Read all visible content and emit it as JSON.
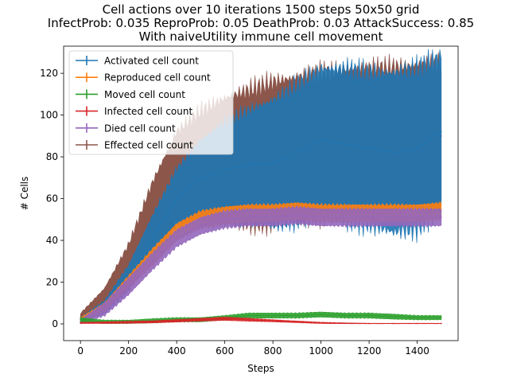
{
  "chart_data": {
    "type": "line",
    "title": [
      "Cell actions over 10 iterations 1500 steps 50x50 grid",
      "InfectProb: 0.035 ReproProb: 0.05 DeathProb: 0.03 AttackSuccess: 0.85",
      "With naiveUtility immune cell movement"
    ],
    "xlabel": "Steps",
    "ylabel": "# Cells",
    "xlim": [
      -70,
      1570
    ],
    "ylim": [
      -8,
      133
    ],
    "xticks": [
      0,
      200,
      400,
      600,
      800,
      1000,
      1200,
      1400
    ],
    "yticks": [
      0,
      20,
      40,
      60,
      80,
      100,
      120
    ],
    "legend_position": "top-left",
    "grid": false,
    "error_bars": true,
    "series": [
      {
        "name": "Activated cell count",
        "color": "#1f77b4",
        "x": [
          0,
          100,
          200,
          300,
          400,
          500,
          600,
          700,
          800,
          900,
          1000,
          1100,
          1200,
          1300,
          1400,
          1500
        ],
        "y": [
          2,
          8,
          22,
          42,
          60,
          70,
          74,
          76,
          77,
          82,
          88,
          86,
          84,
          82,
          84,
          92
        ],
        "err": [
          1,
          3,
          6,
          10,
          14,
          18,
          22,
          26,
          30,
          32,
          34,
          36,
          36,
          38,
          38,
          36
        ]
      },
      {
        "name": "Reproduced cell count",
        "color": "#ff7f0e",
        "x": [
          0,
          100,
          200,
          300,
          400,
          500,
          600,
          700,
          800,
          900,
          1000,
          1100,
          1200,
          1300,
          1400,
          1500
        ],
        "y": [
          2,
          8,
          20,
          32,
          44,
          50,
          52,
          53,
          53,
          54,
          53,
          53,
          53,
          53,
          53,
          54
        ],
        "err": [
          1,
          2,
          3,
          4,
          4,
          4,
          4,
          4,
          4,
          4,
          4,
          4,
          4,
          4,
          4,
          4
        ]
      },
      {
        "name": "Moved cell count",
        "color": "#2ca02c",
        "x": [
          0,
          100,
          200,
          300,
          400,
          500,
          600,
          700,
          800,
          900,
          1000,
          1100,
          1200,
          1300,
          1400,
          1500
        ],
        "y": [
          2,
          1,
          1,
          1.5,
          2,
          2,
          3,
          4,
          4,
          4,
          4.5,
          4,
          4,
          3.5,
          3,
          3
        ],
        "err": [
          1,
          0.8,
          0.8,
          1,
          1,
          1,
          1,
          1.2,
          1.2,
          1.2,
          1.2,
          1.2,
          1.2,
          1.2,
          1,
          1
        ]
      },
      {
        "name": "Infected cell count",
        "color": "#d62728",
        "x": [
          0,
          100,
          200,
          300,
          400,
          500,
          600,
          700,
          800,
          900,
          1000,
          1100,
          1200,
          1300,
          1400,
          1500
        ],
        "y": [
          0.5,
          0.6,
          0.8,
          1,
          1.5,
          2,
          2.5,
          2,
          1.5,
          1,
          0.5,
          0.3,
          0.2,
          0.2,
          0.2,
          0.2
        ],
        "err": [
          0.3,
          0.4,
          0.5,
          0.5,
          0.6,
          0.7,
          0.8,
          0.7,
          0.5,
          0.4,
          0.3,
          0.2,
          0.1,
          0.1,
          0.1,
          0.1
        ]
      },
      {
        "name": "Died cell count",
        "color": "#9467bd",
        "x": [
          0,
          100,
          200,
          300,
          400,
          500,
          600,
          700,
          800,
          900,
          1000,
          1100,
          1200,
          1300,
          1400,
          1500
        ],
        "y": [
          1,
          7,
          18,
          30,
          41,
          47,
          50,
          51,
          51,
          52,
          51,
          51,
          51,
          51,
          51,
          51
        ],
        "err": [
          1,
          3,
          4,
          4,
          4,
          4,
          4,
          4,
          4,
          4,
          4,
          4,
          4,
          4,
          4,
          4
        ]
      },
      {
        "name": "Effected cell count",
        "color": "#8c564b",
        "x": [
          0,
          100,
          200,
          300,
          400,
          500,
          600,
          700,
          800,
          900,
          1000,
          1100,
          1200,
          1300,
          1400,
          1500
        ],
        "y": [
          3,
          12,
          28,
          52,
          70,
          76,
          78,
          80,
          82,
          84,
          86,
          88,
          88,
          89,
          90,
          90
        ],
        "err": [
          2,
          5,
          10,
          16,
          22,
          26,
          30,
          32,
          34,
          34,
          34,
          34,
          34,
          34,
          34,
          35
        ]
      }
    ]
  }
}
